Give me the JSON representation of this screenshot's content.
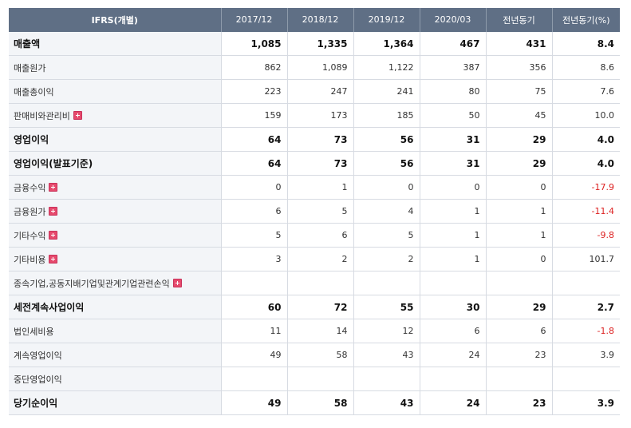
{
  "header": [
    "IFRS(개별)",
    "2017/12",
    "2018/12",
    "2019/12",
    "2020/03",
    "전년동기",
    "전년동기(%)"
  ],
  "rows": [
    {
      "label": "매출액",
      "bold": true,
      "expand": false,
      "values": [
        "1,085",
        "1,335",
        "1,364",
        "467",
        "431",
        "8.4"
      ],
      "neg": false
    },
    {
      "label": "매출원가",
      "bold": false,
      "expand": false,
      "values": [
        "862",
        "1,089",
        "1,122",
        "387",
        "356",
        "8.6"
      ],
      "neg": false
    },
    {
      "label": "매출총이익",
      "bold": false,
      "expand": false,
      "values": [
        "223",
        "247",
        "241",
        "80",
        "75",
        "7.6"
      ],
      "neg": false
    },
    {
      "label": "판매비와관리비",
      "bold": false,
      "expand": true,
      "values": [
        "159",
        "173",
        "185",
        "50",
        "45",
        "10.0"
      ],
      "neg": false
    },
    {
      "label": "영업이익",
      "bold": true,
      "expand": false,
      "values": [
        "64",
        "73",
        "56",
        "31",
        "29",
        "4.0"
      ],
      "neg": false
    },
    {
      "label": "영업이익(발표기준)",
      "bold": true,
      "expand": false,
      "values": [
        "64",
        "73",
        "56",
        "31",
        "29",
        "4.0"
      ],
      "neg": false
    },
    {
      "label": "금융수익",
      "bold": false,
      "expand": true,
      "values": [
        "0",
        "1",
        "0",
        "0",
        "0",
        "-17.9"
      ],
      "neg": true
    },
    {
      "label": "금융원가",
      "bold": false,
      "expand": true,
      "values": [
        "6",
        "5",
        "4",
        "1",
        "1",
        "-11.4"
      ],
      "neg": true
    },
    {
      "label": "기타수익",
      "bold": false,
      "expand": true,
      "values": [
        "5",
        "6",
        "5",
        "1",
        "1",
        "-9.8"
      ],
      "neg": true
    },
    {
      "label": "기타비용",
      "bold": false,
      "expand": true,
      "values": [
        "3",
        "2",
        "2",
        "1",
        "0",
        "101.7"
      ],
      "neg": false
    },
    {
      "label": "종속기업,공동지배기업및관계기업관련손익",
      "bold": false,
      "expand": true,
      "values": [
        "",
        "",
        "",
        "",
        "",
        ""
      ],
      "neg": false
    },
    {
      "label": "세전계속사업이익",
      "bold": true,
      "expand": false,
      "values": [
        "60",
        "72",
        "55",
        "30",
        "29",
        "2.7"
      ],
      "neg": false
    },
    {
      "label": "법인세비용",
      "bold": false,
      "expand": false,
      "values": [
        "11",
        "14",
        "12",
        "6",
        "6",
        "-1.8"
      ],
      "neg": true
    },
    {
      "label": "계속영업이익",
      "bold": false,
      "expand": false,
      "values": [
        "49",
        "58",
        "43",
        "24",
        "23",
        "3.9"
      ],
      "neg": false
    },
    {
      "label": "중단영업이익",
      "bold": false,
      "expand": false,
      "values": [
        "",
        "",
        "",
        "",
        "",
        ""
      ],
      "neg": false
    },
    {
      "label": "당기순이익",
      "bold": true,
      "expand": false,
      "values": [
        "49",
        "58",
        "43",
        "24",
        "23",
        "3.9"
      ],
      "neg": false
    }
  ]
}
